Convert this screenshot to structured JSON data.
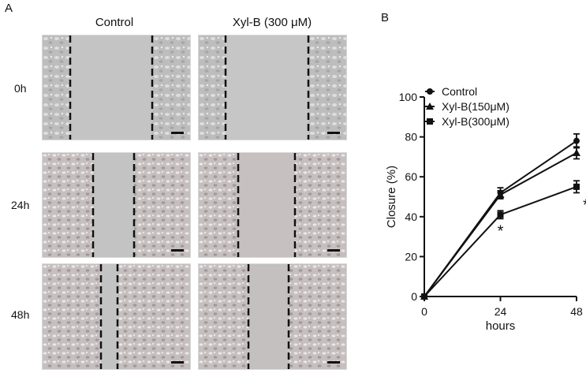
{
  "panels": {
    "a": "A",
    "b": "B"
  },
  "columns": [
    "Control",
    "Xyl-B (300 μM)"
  ],
  "rows": [
    "0h",
    "24h",
    "48h"
  ],
  "chart_data": {
    "type": "line",
    "xlabel": "hours",
    "ylabel": "Closure (%)",
    "x": [
      0,
      24,
      48
    ],
    "x_ticks": [
      "0",
      "24",
      "48"
    ],
    "y_ticks": [
      "0",
      "20",
      "40",
      "60",
      "80",
      "100"
    ],
    "xlim": [
      0,
      48
    ],
    "ylim": [
      0,
      100
    ],
    "legend_position": "top-left",
    "series": [
      {
        "name": "Control",
        "marker": "circle",
        "values": [
          0,
          52,
          78
        ],
        "errors": [
          0,
          2.5,
          3.5
        ]
      },
      {
        "name": "Xyl-B(150μM)",
        "marker": "triangle",
        "values": [
          0,
          51,
          72
        ],
        "errors": [
          0,
          2.0,
          3.0
        ]
      },
      {
        "name": "Xyl-B(300μM)",
        "marker": "square",
        "values": [
          0,
          41,
          55
        ],
        "errors": [
          0,
          2.0,
          3.0
        ]
      }
    ],
    "annotations": [
      "*",
      "*"
    ],
    "annotation_points": [
      {
        "x": 24,
        "series": 2
      },
      {
        "x": 48,
        "series": 2
      }
    ]
  }
}
